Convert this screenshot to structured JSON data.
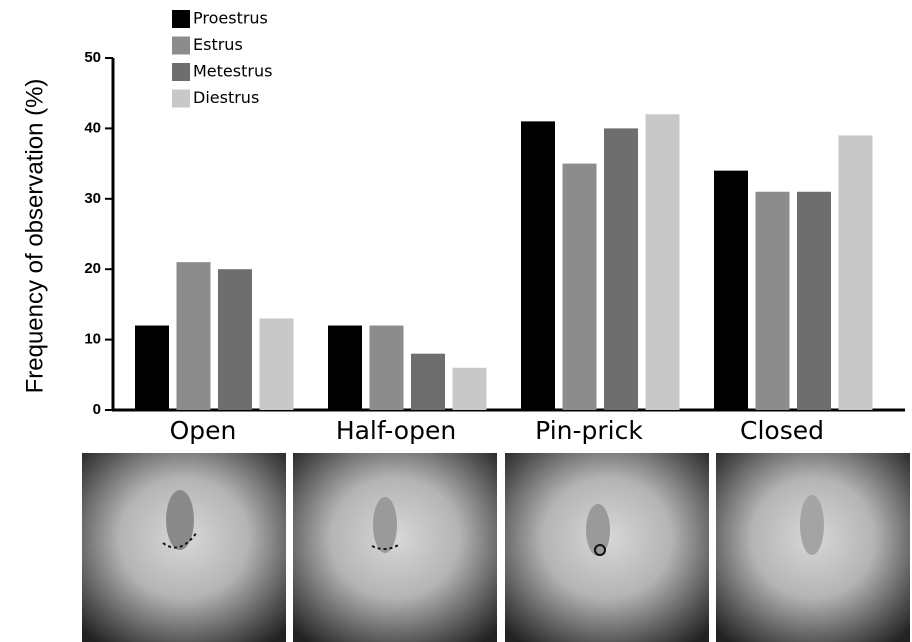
{
  "chart_data": {
    "type": "bar",
    "y_label": "Frequency  of observation (%)",
    "categories": [
      "Open",
      "Half-open",
      "Pin-prick",
      "Closed"
    ],
    "series": [
      {
        "name": "Proestrus",
        "color": "#000000",
        "values": [
          12,
          12,
          41,
          34
        ]
      },
      {
        "name": "Estrus",
        "color": "#8c8c8c",
        "values": [
          21,
          12,
          35,
          31
        ]
      },
      {
        "name": "Metestrus",
        "color": "#6e6e6e",
        "values": [
          20,
          8,
          40,
          31
        ]
      },
      {
        "name": "Diestrus",
        "color": "#c8c8c8",
        "values": [
          13,
          6,
          42,
          39
        ]
      }
    ],
    "ylim": [
      0,
      50
    ],
    "yticks": [
      0,
      10,
      20,
      30,
      40,
      50
    ],
    "legend": "top-left"
  }
}
